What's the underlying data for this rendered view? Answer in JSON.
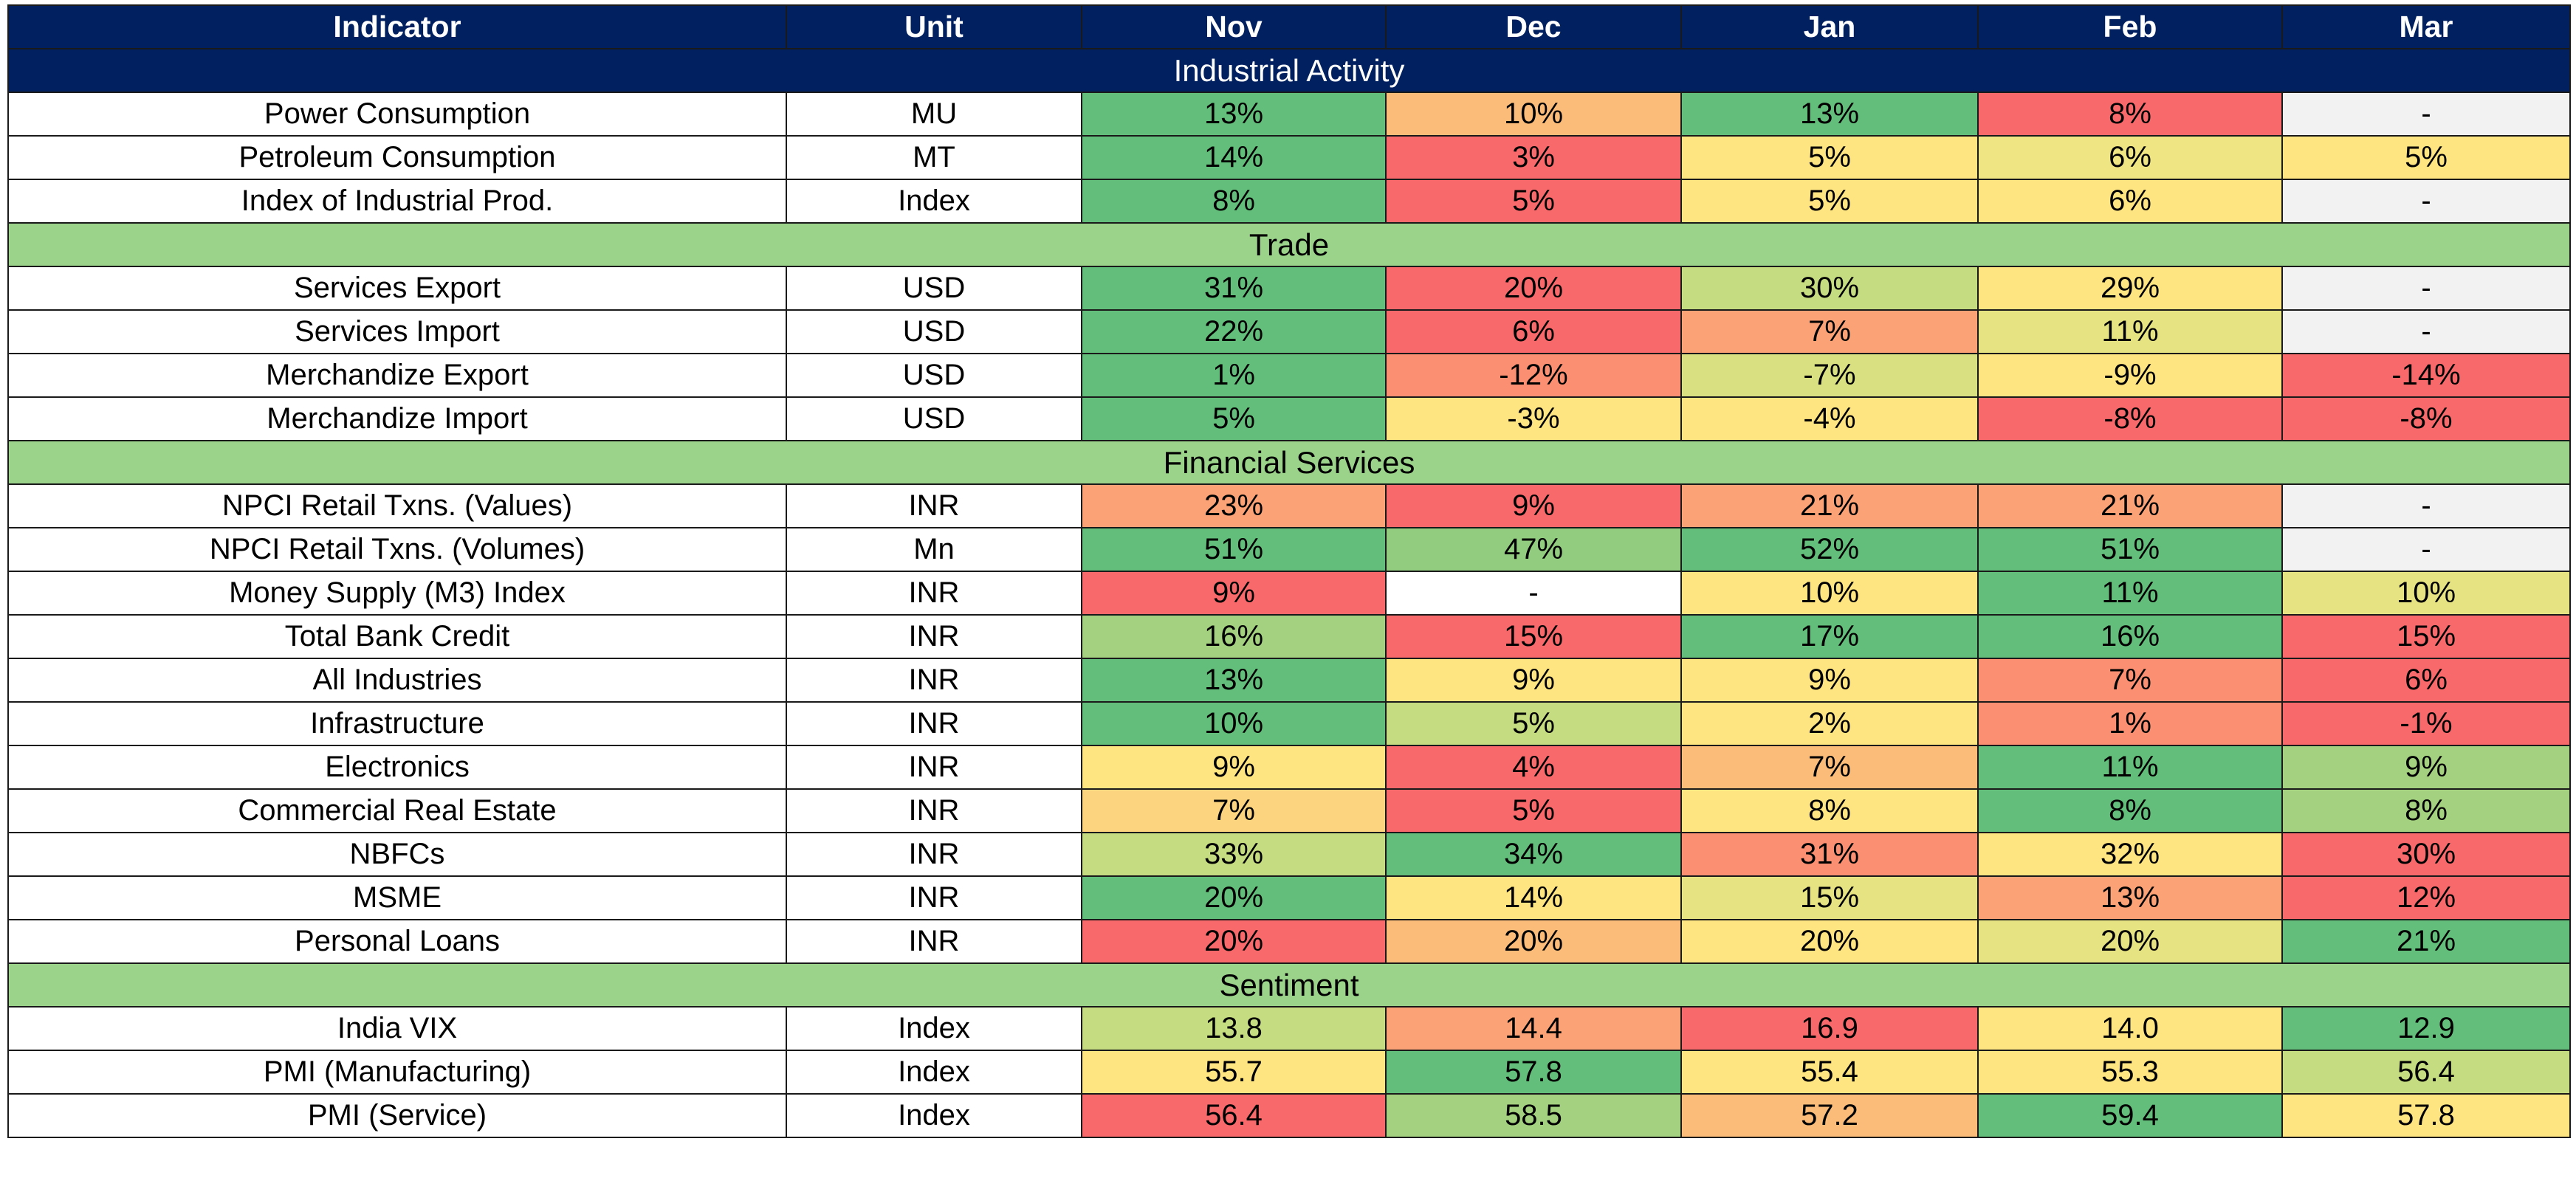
{
  "header": {
    "indicator": "Indicator",
    "unit": "Unit",
    "months": [
      "Nov",
      "Dec",
      "Jan",
      "Feb",
      "Mar"
    ]
  },
  "colors": {
    "header_bg": "#002060",
    "industrial_band": "#002060",
    "other_band": "#9bd38a"
  },
  "sections": [
    {
      "title": "Industrial Activity",
      "band": "#002060",
      "band_text": "#ffffff",
      "rows": [
        {
          "indicator": "Power Consumption",
          "unit": "MU",
          "values": [
            "13%",
            "10%",
            "13%",
            "8%",
            "-"
          ],
          "colors": [
            "#63be7b",
            "#fbbc7a",
            "#63be7b",
            "#f8696b",
            "#f2f2f2"
          ]
        },
        {
          "indicator": "Petroleum Consumption",
          "unit": "MT",
          "values": [
            "14%",
            "3%",
            "5%",
            "6%",
            "5%"
          ],
          "colors": [
            "#63be7b",
            "#f8696b",
            "#ffe582",
            "#f0e583",
            "#ffe582"
          ]
        },
        {
          "indicator": "Index of Industrial Prod.",
          "unit": "Index",
          "values": [
            "8%",
            "5%",
            "5%",
            "6%",
            "-"
          ],
          "colors": [
            "#63be7b",
            "#f8696b",
            "#ffe582",
            "#ffe582",
            "#f2f2f2"
          ]
        }
      ]
    },
    {
      "title": "Trade",
      "band": "#9bd38a",
      "band_text": "#000000",
      "rows": [
        {
          "indicator": "Services Export",
          "unit": "USD",
          "values": [
            "31%",
            "20%",
            "30%",
            "29%",
            "-"
          ],
          "colors": [
            "#63be7b",
            "#f8696b",
            "#c6dc80",
            "#ffe582",
            "#f2f2f2"
          ]
        },
        {
          "indicator": "Services Import",
          "unit": "USD",
          "values": [
            "22%",
            "6%",
            "7%",
            "11%",
            "-"
          ],
          "colors": [
            "#63be7b",
            "#f8696b",
            "#fba276",
            "#e6e383",
            "#f2f2f2"
          ]
        },
        {
          "indicator": "Merchandize Export",
          "unit": "USD",
          "values": [
            "1%",
            "-12%",
            "-7%",
            "-9%",
            "-14%"
          ],
          "colors": [
            "#63be7b",
            "#fa8f72",
            "#d9e082",
            "#ffe582",
            "#f8696b"
          ]
        },
        {
          "indicator": "Merchandize Import",
          "unit": "USD",
          "values": [
            "5%",
            "-3%",
            "-4%",
            "-8%",
            "-8%"
          ],
          "colors": [
            "#63be7b",
            "#ffe582",
            "#ffe582",
            "#f8696b",
            "#f8696b"
          ]
        }
      ]
    },
    {
      "title": "Financial Services",
      "band": "#9bd38a",
      "band_text": "#000000",
      "rows": [
        {
          "indicator": "NPCI Retail Txns. (Values)",
          "unit": "INR",
          "values": [
            "23%",
            "9%",
            "21%",
            "21%",
            "-"
          ],
          "colors": [
            "#fba276",
            "#f8696b",
            "#fba276",
            "#fba276",
            "#f2f2f2"
          ]
        },
        {
          "indicator": "NPCI Retail Txns. (Volumes)",
          "unit": "Mn",
          "values": [
            "51%",
            "47%",
            "52%",
            "51%",
            "-"
          ],
          "colors": [
            "#63be7b",
            "#92cc7e",
            "#63be7b",
            "#63be7b",
            "#f2f2f2"
          ]
        },
        {
          "indicator": "Money Supply (M3) Index",
          "unit": "INR",
          "values": [
            "9%",
            "-",
            "10%",
            "11%",
            "10%"
          ],
          "colors": [
            "#f8696b",
            "#ffffff",
            "#ffe582",
            "#63be7b",
            "#e6e383"
          ]
        },
        {
          "indicator": "Total Bank Credit",
          "unit": "INR",
          "values": [
            "16%",
            "15%",
            "17%",
            "16%",
            "15%"
          ],
          "colors": [
            "#a4d17f",
            "#f8696b",
            "#63be7b",
            "#63be7b",
            "#f8696b"
          ]
        },
        {
          "indicator": "All Industries",
          "unit": "INR",
          "values": [
            "13%",
            "9%",
            "9%",
            "7%",
            "6%"
          ],
          "colors": [
            "#63be7b",
            "#ffe582",
            "#ffe582",
            "#fa8f72",
            "#f8696b"
          ]
        },
        {
          "indicator": "Infrastructure",
          "unit": "INR",
          "values": [
            "10%",
            "5%",
            "2%",
            "1%",
            "-1%"
          ],
          "colors": [
            "#63be7b",
            "#c6dc80",
            "#ffe582",
            "#fa8f72",
            "#f8696b"
          ]
        },
        {
          "indicator": "Electronics",
          "unit": "INR",
          "values": [
            "9%",
            "4%",
            "7%",
            "11%",
            "9%"
          ],
          "colors": [
            "#ffe582",
            "#f8696b",
            "#fbbc7a",
            "#63be7b",
            "#a4d17f"
          ]
        },
        {
          "indicator": "Commercial Real Estate",
          "unit": "INR",
          "values": [
            "7%",
            "5%",
            "8%",
            "8%",
            "8%"
          ],
          "colors": [
            "#fcd47f",
            "#f8696b",
            "#ffe582",
            "#63be7b",
            "#a4d17f"
          ]
        },
        {
          "indicator": "NBFCs",
          "unit": "INR",
          "values": [
            "33%",
            "34%",
            "31%",
            "32%",
            "30%"
          ],
          "colors": [
            "#c6dc80",
            "#63be7b",
            "#fa8f72",
            "#ffe582",
            "#f8696b"
          ]
        },
        {
          "indicator": "MSME",
          "unit": "INR",
          "values": [
            "20%",
            "14%",
            "15%",
            "13%",
            "12%"
          ],
          "colors": [
            "#63be7b",
            "#ffe582",
            "#e6e383",
            "#fba276",
            "#f8696b"
          ]
        },
        {
          "indicator": "Personal Loans",
          "unit": "INR",
          "values": [
            "20%",
            "20%",
            "20%",
            "20%",
            "21%"
          ],
          "colors": [
            "#f8696b",
            "#fbbc7a",
            "#ffe582",
            "#e6e383",
            "#63be7b"
          ]
        }
      ]
    },
    {
      "title": "Sentiment",
      "band": "#9bd38a",
      "band_text": "#000000",
      "rows": [
        {
          "indicator": "India VIX",
          "unit": "Index",
          "values": [
            "13.8",
            "14.4",
            "16.9",
            "14.0",
            "12.9"
          ],
          "colors": [
            "#c6dc80",
            "#fba276",
            "#f8696b",
            "#ffe582",
            "#63be7b"
          ]
        },
        {
          "indicator": "PMI (Manufacturing)",
          "unit": "Index",
          "values": [
            "55.7",
            "57.8",
            "55.4",
            "55.3",
            "56.4"
          ],
          "colors": [
            "#ffe582",
            "#63be7b",
            "#ffe582",
            "#ffe582",
            "#c6dc80"
          ]
        },
        {
          "indicator": "PMI (Service)",
          "unit": "Index",
          "values": [
            "56.4",
            "58.5",
            "57.2",
            "59.4",
            "57.8"
          ],
          "colors": [
            "#f8696b",
            "#a4d17f",
            "#fbbc7a",
            "#63be7b",
            "#ffe582"
          ]
        }
      ]
    }
  ]
}
